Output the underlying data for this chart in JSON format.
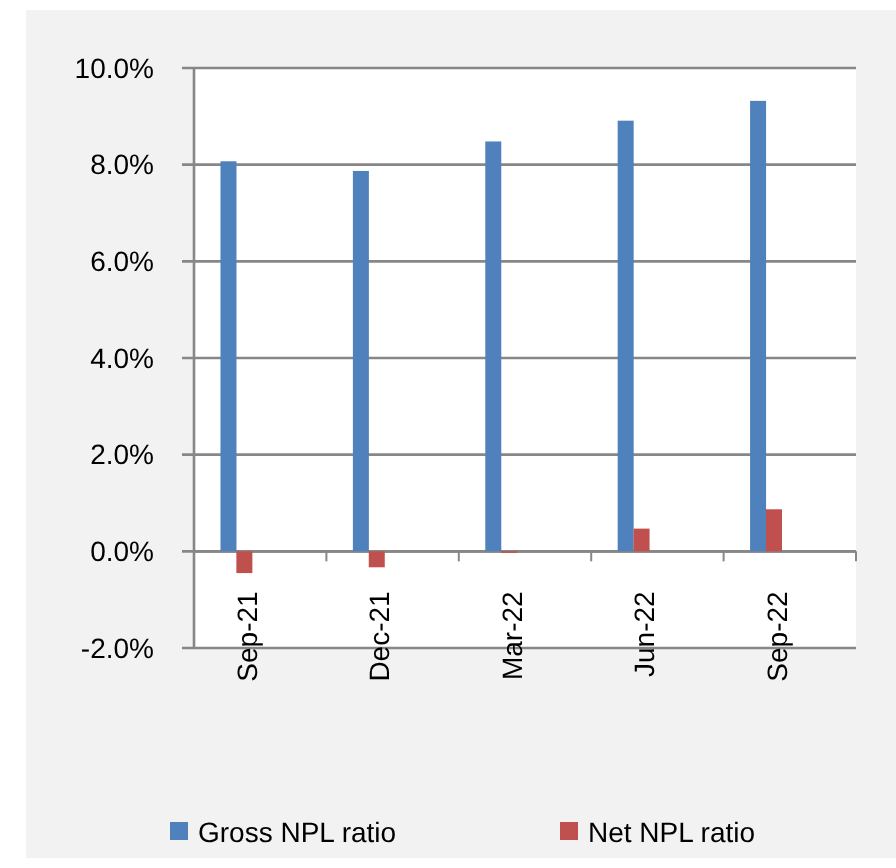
{
  "chart_data": {
    "type": "bar",
    "categories": [
      "Sep-21",
      "Dec-21",
      "Mar-22",
      "Jun-22",
      "Sep-22"
    ],
    "series": [
      {
        "name": "Gross NPL ratio",
        "color": "#4f81bd",
        "values": [
          8.07,
          7.87,
          8.48,
          8.91,
          9.32
        ]
      },
      {
        "name": "Net NPL ratio",
        "color": "#c0504d",
        "values": [
          -0.45,
          -0.33,
          -0.03,
          0.47,
          0.87
        ]
      }
    ],
    "ylim": [
      -2,
      10
    ],
    "yticks": [
      {
        "value": -2,
        "label": "-2.0%"
      },
      {
        "value": 0,
        "label": "0.0%"
      },
      {
        "value": 2,
        "label": "2.0%"
      },
      {
        "value": 4,
        "label": "4.0%"
      },
      {
        "value": 6,
        "label": "6.0%"
      },
      {
        "value": 8,
        "label": "8.0%"
      },
      {
        "value": 10,
        "label": "10.0%"
      }
    ],
    "grid": "y",
    "legend": "bottom"
  }
}
